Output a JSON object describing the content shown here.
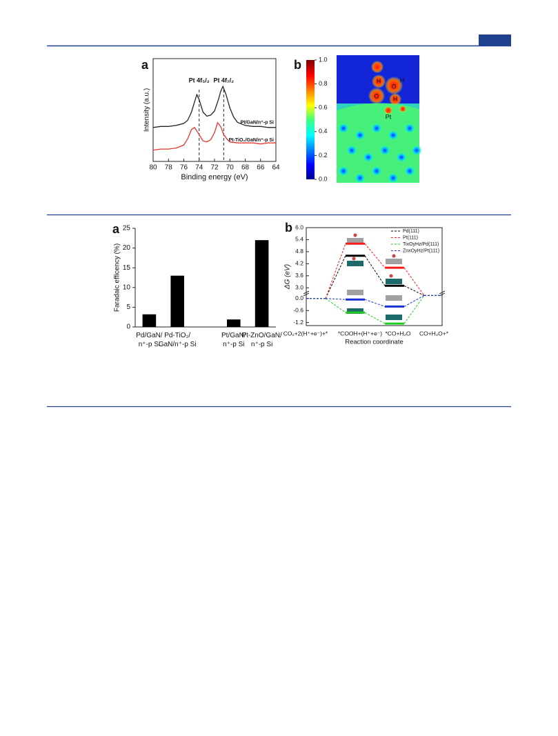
{
  "chart_data": [
    {
      "type": "line",
      "panel": "a",
      "xlabel": "Binding energy (eV)",
      "ylabel": "Intensity (a.u.)",
      "xlim": [
        80,
        64
      ],
      "xticks": [
        80,
        78,
        76,
        74,
        72,
        70,
        68,
        66,
        64
      ],
      "ylim": [
        0,
        100
      ],
      "reference_lines": [
        74.0,
        70.8
      ],
      "peak_labels": [
        "Pt 4f₅/₂",
        "Pt 4f₇/₂"
      ],
      "series": [
        {
          "name": "Pt/GaN/n⁺-p Si",
          "color": "#222222",
          "x": [
            80,
            79,
            78,
            77,
            76,
            75.5,
            75,
            74.6,
            74.3,
            74,
            73.5,
            73,
            72.5,
            72,
            71.5,
            71.2,
            70.9,
            70.5,
            70,
            69.5,
            69,
            68,
            67,
            66,
            65,
            64
          ],
          "values": [
            33,
            34,
            34,
            35,
            37,
            40,
            48,
            58,
            65,
            60,
            48,
            44,
            45,
            49,
            60,
            68,
            73,
            65,
            52,
            43,
            38,
            35,
            34,
            34,
            33,
            33
          ]
        },
        {
          "name": "Pt-TiO₂/GaN/n⁺-p Si",
          "color": "#e8322e",
          "x": [
            80,
            79,
            78,
            77,
            76,
            75.5,
            75,
            74.6,
            74,
            73.5,
            73,
            72.5,
            72,
            71.6,
            71.2,
            70.8,
            70.3,
            70,
            69,
            68,
            67,
            66,
            65,
            64
          ],
          "values": [
            11,
            12,
            12,
            13,
            16,
            22,
            31,
            33,
            26,
            20,
            19,
            21,
            28,
            37.6,
            34,
            26,
            21,
            19,
            18,
            18,
            18,
            17,
            18,
            18
          ]
        }
      ]
    },
    {
      "type": "heatmap",
      "panel": "b",
      "colorbar": {
        "lim": [
          0,
          1
        ],
        "ticks": [
          {
            "value": 0,
            "label": "0.0"
          },
          0.2,
          0.4,
          0.6,
          0.8,
          {
            "value": 1,
            "label": "1.0"
          }
        ]
      },
      "labels": [
        "H",
        "O",
        "H",
        "O",
        "H",
        "Pt"
      ]
    },
    {
      "type": "bar",
      "panel": "a",
      "ylabel": "Faradaic efficency (%)",
      "categories": [
        "Pd/GaN/\nn⁺-p Si",
        "Pd-TiO₂/\nGaN/n⁺-p Si",
        null,
        "Pt/GaN/\nn⁺-p Si",
        "Pt-ZnO/GaN/\nn⁺-p Si"
      ],
      "values": [
        3.2,
        13,
        null,
        1.9,
        22
      ],
      "color": "#000000",
      "ylim": [
        0,
        25
      ],
      "yticks": [
        0,
        5,
        10,
        15,
        20,
        25
      ]
    },
    {
      "type": "profile",
      "panel": "b",
      "xlabel": "Reaction coordinate",
      "ylabel": "ΔG (eV)",
      "categories": [
        "CO₂+2(H⁺+e⁻)+*",
        "*COOH+(H⁺+e⁻)",
        "*CO+H₂O",
        "CO+H₂O+*"
      ],
      "ylim": [
        -1.35,
        6.0
      ],
      "ybreak": [
        0.25,
        2.75
      ],
      "yticks": [
        {
          "value": 6,
          "label": "6.0"
        },
        5.4,
        4.8,
        4.2,
        3.6,
        {
          "value": 3,
          "label": "3.0"
        },
        {
          "value": 0,
          "label": "0.0"
        },
        -0.6,
        -1.2
      ],
      "series": [
        {
          "name": "Pd(111)",
          "color": "#000000",
          "values": [
            0,
            4.6,
            3.1,
            0.15
          ]
        },
        {
          "name": "Pt(111)",
          "color": "#ff1a1a",
          "values": [
            0,
            5.2,
            4.0,
            0.15
          ]
        },
        {
          "name": "TixOyHz/Pd(111)",
          "color": "#22cc22",
          "values": [
            0,
            -0.7,
            -1.25,
            0.15
          ]
        },
        {
          "name": "ZnxOyHz/Pt(111)",
          "color": "#1a2fd0",
          "values": [
            0,
            -0.05,
            -0.4,
            0.15
          ]
        }
      ]
    }
  ]
}
